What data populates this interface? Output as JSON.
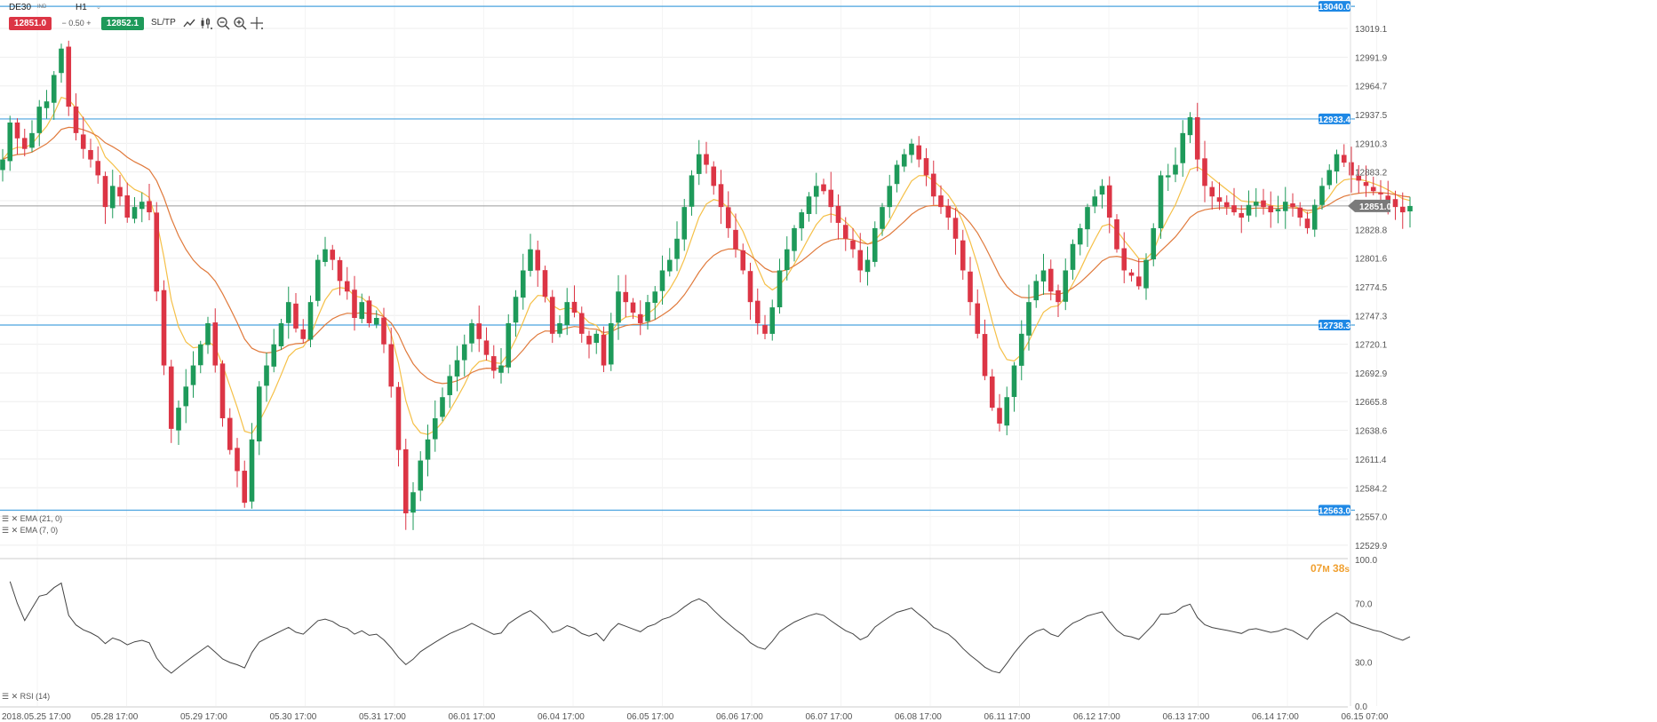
{
  "toolbar": {
    "symbol": "DE30",
    "symbol_sub": "IND",
    "timeframe": "H1",
    "sell_price": "12851.0",
    "spread": "0.50",
    "buy_price": "12852.1",
    "sltp_label": "SL/TP",
    "tools": [
      "line-chart-icon",
      "candlestick-icon",
      "zoom-out-icon",
      "zoom-in-icon",
      "crosshair-icon"
    ]
  },
  "colors": {
    "bull": "#1e9a5a",
    "bear": "#dc3545",
    "ema7": "#f5c048",
    "ema21": "#e07a3c",
    "hline": "#4aa3df",
    "price_line": "#9b9b9b",
    "rsi": "#444444"
  },
  "legends": {
    "ema21": "EMA (21, 0)",
    "ema7": "EMA (7, 0)",
    "rsi": "RSI (14)"
  },
  "timer": {
    "minutes": "07",
    "m_unit": "M",
    "seconds": "38",
    "s_unit": "s"
  },
  "chart_data": {
    "type": "candlestick",
    "symbol": "DE30",
    "timeframe": "H1",
    "current_price": 12851.0,
    "horizontal_lines": [
      13040.0,
      12933.4,
      12738.3,
      12563.0
    ],
    "horizontal_line_labels": [
      "13040.0",
      "12933.4",
      "12738.3",
      "12563.0"
    ],
    "current_price_label": "12851.0",
    "y_ticks": [
      "13019.1",
      "12991.9",
      "12964.7",
      "12937.5",
      "12910.3",
      "12883.2",
      "12856.0",
      "12828.8",
      "12801.6",
      "12774.5",
      "12747.3",
      "12720.1",
      "12692.9",
      "12665.8",
      "12638.6",
      "12611.4",
      "12584.2",
      "12557.0",
      "12529.9"
    ],
    "x_ticks": [
      "2018.05.25 17:00",
      "05.28 17:00",
      "05.29 17:00",
      "05.30 17:00",
      "05.31 17:00",
      "06.01 17:00",
      "06.04 17:00",
      "06.05 17:00",
      "06.06 17:00",
      "06.07 17:00",
      "06.08 17:00",
      "06.11 17:00",
      "06.12 17:00",
      "06.13 17:00",
      "06.14 17:00",
      "06.15 07:00"
    ],
    "ylim": [
      12518,
      13046
    ],
    "closes": [
      12895,
      12930,
      12915,
      12905,
      12920,
      12945,
      12950,
      12975,
      13000,
      12945,
      12920,
      12905,
      12895,
      12880,
      12850,
      12870,
      12860,
      12840,
      12850,
      12855,
      12845,
      12770,
      12700,
      12640,
      12660,
      12680,
      12700,
      12720,
      12740,
      12700,
      12650,
      12620,
      12600,
      12570,
      12630,
      12680,
      12700,
      12720,
      12740,
      12760,
      12735,
      12725,
      12760,
      12800,
      12810,
      12800,
      12780,
      12770,
      12745,
      12760,
      12740,
      12745,
      12720,
      12680,
      12620,
      12560,
      12580,
      12610,
      12630,
      12650,
      12670,
      12690,
      12705,
      12720,
      12740,
      12725,
      12710,
      12695,
      12700,
      12740,
      12765,
      12790,
      12810,
      12790,
      12765,
      12730,
      12740,
      12760,
      12750,
      12730,
      12720,
      12730,
      12700,
      12740,
      12770,
      12760,
      12750,
      12740,
      12760,
      12770,
      12790,
      12800,
      12820,
      12850,
      12880,
      12900,
      12890,
      12870,
      12850,
      12830,
      12810,
      12790,
      12760,
      12740,
      12730,
      12755,
      12790,
      12810,
      12830,
      12845,
      12860,
      12870,
      12865,
      12850,
      12835,
      12820,
      12810,
      12790,
      12800,
      12830,
      12850,
      12870,
      12890,
      12900,
      12910,
      12895,
      12880,
      12860,
      12850,
      12840,
      12820,
      12790,
      12760,
      12730,
      12690,
      12660,
      12645,
      12670,
      12700,
      12730,
      12760,
      12780,
      12790,
      12770,
      12760,
      12790,
      12815,
      12830,
      12850,
      12860,
      12870,
      12840,
      12810,
      12790,
      12785,
      12775,
      12800,
      12830,
      12880,
      12880,
      12890,
      12920,
      12935,
      12895,
      12870,
      12860,
      12855,
      12850,
      12845,
      12840,
      12852,
      12855,
      12850,
      12845,
      12848,
      12855,
      12850,
      12840,
      12830,
      12852,
      12870,
      12885,
      12900,
      12892,
      12880,
      12875,
      12870,
      12865,
      12862,
      12856,
      12850,
      12845,
      12851
    ],
    "ema_series": [
      "EMA (7, 0)",
      "EMA (21, 0)"
    ],
    "rsi": {
      "label": "RSI (14)",
      "ylim": [
        0,
        100
      ],
      "ticks": [
        "100.0",
        "70.0",
        "30.0",
        "0.0"
      ]
    }
  }
}
